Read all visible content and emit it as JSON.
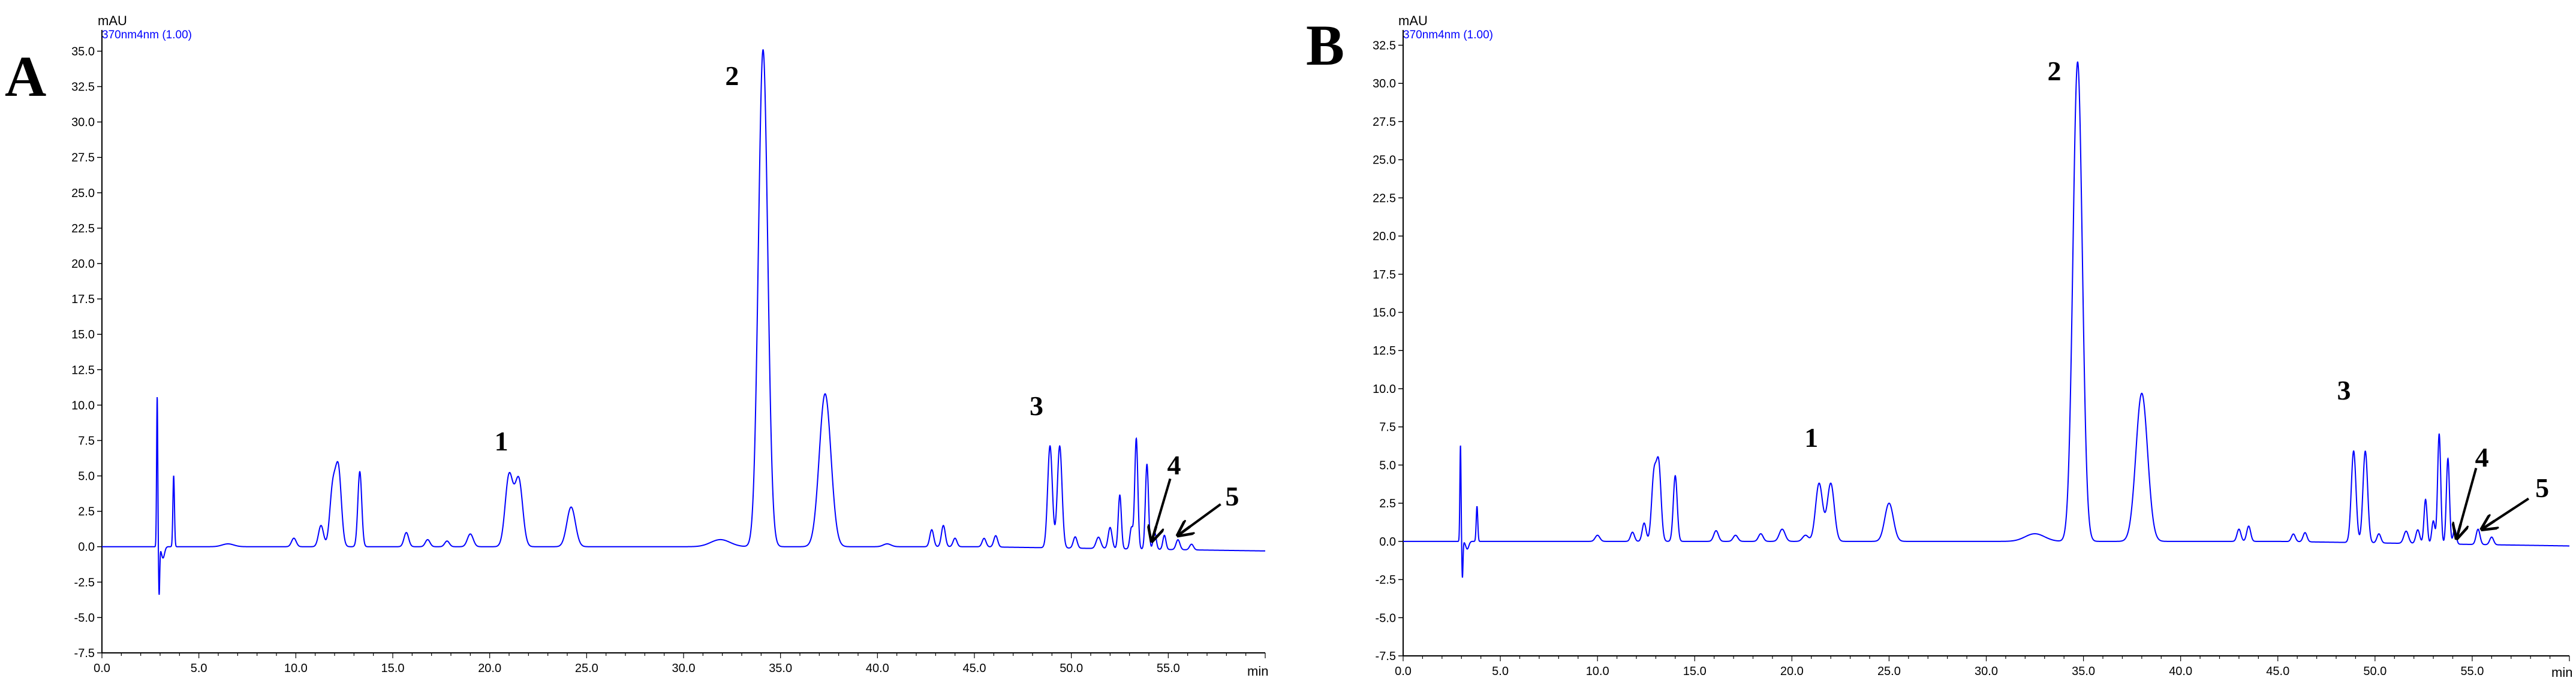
{
  "chart_data": [
    {
      "type": "line",
      "panel_label": "A",
      "title": "",
      "ylabel": "mAU",
      "xlabel": "min",
      "channel_label": "370nm4nm (1.00)",
      "xlim": [
        0,
        60
      ],
      "ylim": [
        -7.5,
        36.5
      ],
      "xticks": [
        0,
        5,
        10,
        15,
        20,
        25,
        30,
        35,
        40,
        45,
        50,
        55
      ],
      "xtick_labels": [
        "0.0",
        "5.0",
        "10.0",
        "15.0",
        "20.0",
        "25.0",
        "30.0",
        "35.0",
        "40.0",
        "45.0",
        "50.0",
        "55.0"
      ],
      "yticks": [
        -7.5,
        -5,
        -2.5,
        0,
        2.5,
        5,
        7.5,
        10,
        12.5,
        15,
        17.5,
        20,
        22.5,
        25,
        27.5,
        30,
        32.5,
        35
      ],
      "ytick_labels": [
        "-7.5",
        "-5.0",
        "-2.5",
        "0.0",
        "2.5",
        "5.0",
        "7.5",
        "10.0",
        "12.5",
        "15.0",
        "17.5",
        "20.0",
        "22.5",
        "25.0",
        "27.5",
        "30.0",
        "32.5",
        "35.0"
      ],
      "grid": false,
      "line_color": "#0000ff",
      "series": [
        {
          "baseline_end": -0.3,
          "peaks": [
            {
              "rt": 2.85,
              "height": 10.6,
              "width": 0.03
            },
            {
              "rt": 2.95,
              "height": -3.4,
              "width": 0.03
            },
            {
              "rt": 3.7,
              "height": 5.0,
              "width": 0.04
            },
            {
              "rt": 3.15,
              "height": -0.8,
              "width": 0.08
            },
            {
              "rt": 6.5,
              "height": 0.2,
              "width": 0.3
            },
            {
              "rt": 9.9,
              "height": 0.6,
              "width": 0.12
            },
            {
              "rt": 11.3,
              "height": 1.5,
              "width": 0.13
            },
            {
              "rt": 11.9,
              "height": 4.0,
              "width": 0.15
            },
            {
              "rt": 12.2,
              "height": 5.3,
              "width": 0.15
            },
            {
              "rt": 13.3,
              "height": 5.3,
              "width": 0.1
            },
            {
              "rt": 15.7,
              "height": 1.0,
              "width": 0.12
            },
            {
              "rt": 16.8,
              "height": 0.5,
              "width": 0.12
            },
            {
              "rt": 17.8,
              "height": 0.4,
              "width": 0.12
            },
            {
              "rt": 19.0,
              "height": 0.9,
              "width": 0.15
            },
            {
              "rt": 21.0,
              "height": 5.0,
              "width": 0.2
            },
            {
              "rt": 21.5,
              "height": 4.7,
              "width": 0.2
            },
            {
              "rt": 24.2,
              "height": 2.8,
              "width": 0.22
            },
            {
              "rt": 31.9,
              "height": 0.5,
              "width": 0.5
            },
            {
              "rt": 34.1,
              "height": 35.1,
              "width": 0.24
            },
            {
              "rt": 37.3,
              "height": 10.8,
              "width": 0.3
            },
            {
              "rt": 40.5,
              "height": 0.2,
              "width": 0.2
            },
            {
              "rt": 42.8,
              "height": 1.2,
              "width": 0.1
            },
            {
              "rt": 43.4,
              "height": 1.5,
              "width": 0.1
            },
            {
              "rt": 44.0,
              "height": 0.6,
              "width": 0.1
            },
            {
              "rt": 45.5,
              "height": 0.6,
              "width": 0.1
            },
            {
              "rt": 46.1,
              "height": 0.8,
              "width": 0.1
            },
            {
              "rt": 48.9,
              "height": 7.2,
              "width": 0.12
            },
            {
              "rt": 49.4,
              "height": 7.2,
              "width": 0.12
            },
            {
              "rt": 50.2,
              "height": 0.8,
              "width": 0.1
            },
            {
              "rt": 51.4,
              "height": 0.8,
              "width": 0.12
            },
            {
              "rt": 52.0,
              "height": 1.5,
              "width": 0.1
            },
            {
              "rt": 52.5,
              "height": 3.8,
              "width": 0.08
            },
            {
              "rt": 53.1,
              "height": 1.5,
              "width": 0.08
            },
            {
              "rt": 53.35,
              "height": 7.8,
              "width": 0.08
            },
            {
              "rt": 53.9,
              "height": 6.0,
              "width": 0.08
            },
            {
              "rt": 54.3,
              "height": 1.2,
              "width": 0.08
            },
            {
              "rt": 54.8,
              "height": 1.0,
              "width": 0.08
            },
            {
              "rt": 55.5,
              "height": 0.7,
              "width": 0.1
            },
            {
              "rt": 56.2,
              "height": 0.4,
              "width": 0.1
            }
          ]
        }
      ],
      "annotations": [
        {
          "text": "1",
          "x": 20.6,
          "y": 6.8
        },
        {
          "text": "2",
          "x": 32.5,
          "y": 32.6
        },
        {
          "text": "3",
          "x": 48.2,
          "y": 9.3
        },
        {
          "text": "4",
          "x": 55.3,
          "y": 5.1
        },
        {
          "text": "5",
          "x": 58.3,
          "y": 2.9
        }
      ],
      "arrows": [
        {
          "from_x": 55.1,
          "from_y": 4.8,
          "to_x": 54.15,
          "to_y": 0.4
        },
        {
          "from_x": 57.7,
          "from_y": 3.0,
          "to_x": 55.5,
          "to_y": 0.8
        }
      ]
    },
    {
      "type": "line",
      "panel_label": "B",
      "title": "",
      "ylabel": "mAU",
      "xlabel": "min",
      "channel_label": "370nm4nm (1.00)",
      "xlim": [
        0,
        60
      ],
      "ylim": [
        -7.5,
        33.5
      ],
      "xticks": [
        0,
        5,
        10,
        15,
        20,
        25,
        30,
        35,
        40,
        45,
        50,
        55
      ],
      "xtick_labels": [
        "0.0",
        "5.0",
        "10.0",
        "15.0",
        "20.0",
        "25.0",
        "30.0",
        "35.0",
        "40.0",
        "45.0",
        "50.0",
        "55.0"
      ],
      "yticks": [
        -7.5,
        -5,
        -2.5,
        0,
        2.5,
        5,
        7.5,
        10,
        12.5,
        15,
        17.5,
        20,
        22.5,
        25,
        27.5,
        30,
        32.5
      ],
      "ytick_labels": [
        "-7.5",
        "-5.0",
        "-2.5",
        "0.0",
        "2.5",
        "5.0",
        "7.5",
        "10.0",
        "12.5",
        "15.0",
        "17.5",
        "20.0",
        "22.5",
        "25.0",
        "27.5",
        "30.0",
        "32.5"
      ],
      "grid": false,
      "line_color": "#0000ff",
      "series": [
        {
          "baseline_end": -0.3,
          "peaks": [
            {
              "rt": 2.95,
              "height": 6.3,
              "width": 0.03
            },
            {
              "rt": 3.05,
              "height": -2.4,
              "width": 0.03
            },
            {
              "rt": 3.8,
              "height": 2.3,
              "width": 0.04
            },
            {
              "rt": 3.3,
              "height": -0.5,
              "width": 0.08
            },
            {
              "rt": 10.0,
              "height": 0.4,
              "width": 0.12
            },
            {
              "rt": 11.8,
              "height": 0.6,
              "width": 0.1
            },
            {
              "rt": 12.4,
              "height": 1.2,
              "width": 0.1
            },
            {
              "rt": 12.9,
              "height": 4.2,
              "width": 0.12
            },
            {
              "rt": 13.15,
              "height": 4.9,
              "width": 0.12
            },
            {
              "rt": 14.0,
              "height": 4.3,
              "width": 0.1
            },
            {
              "rt": 16.1,
              "height": 0.7,
              "width": 0.12
            },
            {
              "rt": 17.1,
              "height": 0.4,
              "width": 0.12
            },
            {
              "rt": 18.4,
              "height": 0.5,
              "width": 0.12
            },
            {
              "rt": 19.5,
              "height": 0.8,
              "width": 0.15
            },
            {
              "rt": 20.7,
              "height": 0.4,
              "width": 0.15
            },
            {
              "rt": 21.4,
              "height": 3.8,
              "width": 0.18
            },
            {
              "rt": 22.0,
              "height": 3.8,
              "width": 0.18
            },
            {
              "rt": 25.0,
              "height": 2.5,
              "width": 0.22
            },
            {
              "rt": 32.5,
              "height": 0.5,
              "width": 0.5
            },
            {
              "rt": 34.7,
              "height": 31.4,
              "width": 0.24
            },
            {
              "rt": 38.0,
              "height": 9.7,
              "width": 0.3
            },
            {
              "rt": 43.0,
              "height": 0.8,
              "width": 0.1
            },
            {
              "rt": 43.5,
              "height": 1.0,
              "width": 0.1
            },
            {
              "rt": 45.8,
              "height": 0.5,
              "width": 0.1
            },
            {
              "rt": 46.4,
              "height": 0.6,
              "width": 0.1
            },
            {
              "rt": 48.9,
              "height": 6.0,
              "width": 0.12
            },
            {
              "rt": 49.5,
              "height": 6.0,
              "width": 0.12
            },
            {
              "rt": 50.2,
              "height": 0.6,
              "width": 0.1
            },
            {
              "rt": 51.6,
              "height": 0.8,
              "width": 0.12
            },
            {
              "rt": 52.2,
              "height": 0.9,
              "width": 0.1
            },
            {
              "rt": 52.6,
              "height": 2.9,
              "width": 0.08
            },
            {
              "rt": 53.0,
              "height": 1.5,
              "width": 0.08
            },
            {
              "rt": 53.3,
              "height": 7.2,
              "width": 0.08
            },
            {
              "rt": 53.75,
              "height": 5.6,
              "width": 0.08
            },
            {
              "rt": 54.1,
              "height": 1.0,
              "width": 0.08
            },
            {
              "rt": 55.3,
              "height": 1.0,
              "width": 0.1
            },
            {
              "rt": 56.0,
              "height": 0.5,
              "width": 0.1
            }
          ]
        }
      ],
      "annotations": [
        {
          "text": "1",
          "x": 21.0,
          "y": 6.2
        },
        {
          "text": "2",
          "x": 33.5,
          "y": 30.2
        },
        {
          "text": "3",
          "x": 48.4,
          "y": 9.3
        },
        {
          "text": "4",
          "x": 55.5,
          "y": 4.9
        },
        {
          "text": "5",
          "x": 58.6,
          "y": 2.9
        }
      ],
      "arrows": [
        {
          "from_x": 55.2,
          "from_y": 4.8,
          "to_x": 54.2,
          "to_y": 0.2
        },
        {
          "from_x": 57.9,
          "from_y": 2.8,
          "to_x": 55.5,
          "to_y": 0.8
        }
      ]
    }
  ]
}
